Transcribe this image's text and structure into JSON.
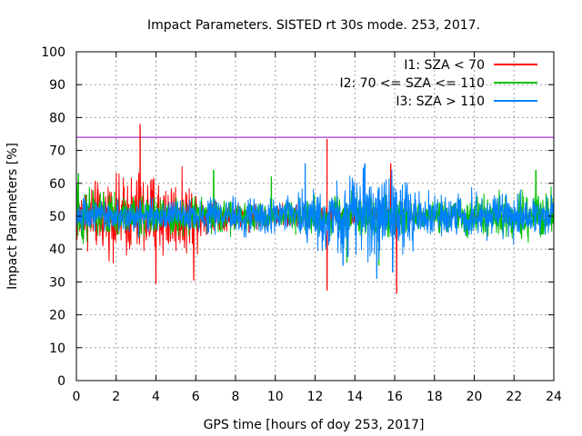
{
  "chart_data": {
    "type": "line",
    "title": "Impact Parameters. SISTED rt 30s mode. 253, 2017.",
    "xlabel": "GPS time [hours of doy 253, 2017]",
    "ylabel": "Impact Parameters [%]",
    "xlim": [
      0,
      24
    ],
    "ylim": [
      0,
      100
    ],
    "xticks": [
      0,
      2,
      4,
      6,
      8,
      10,
      12,
      14,
      16,
      18,
      20,
      22,
      24
    ],
    "yticks": [
      0,
      10,
      20,
      30,
      40,
      50,
      60,
      70,
      80,
      90,
      100
    ],
    "grid": true,
    "legend_position": "top-right",
    "threshold": {
      "value": 74,
      "color": "#9400d3"
    },
    "series": [
      {
        "name": "I1: SZA < 70",
        "color": "#ff0000",
        "center": 50,
        "envelope_x": [
          0,
          1,
          2,
          3,
          4,
          5,
          6,
          6.5,
          24
        ],
        "envelope_half_width": [
          8,
          9,
          10,
          12,
          12,
          10,
          9,
          4,
          0
        ],
        "spikes": [
          {
            "x": 3.2,
            "y": 78
          },
          {
            "x": 4.0,
            "y": 29.5
          },
          {
            "x": 5.9,
            "y": 30.5
          },
          {
            "x": 12.6,
            "y": 73.5
          },
          {
            "x": 12.6,
            "y": 27.5
          },
          {
            "x": 16.1,
            "y": 26.5
          },
          {
            "x": 15.8,
            "y": 66
          }
        ]
      },
      {
        "name": "I2: 70 <= SZA <= 110",
        "color": "#00c000",
        "center": 50,
        "envelope_x": [
          0,
          2,
          4,
          6,
          7,
          10,
          12,
          14,
          16,
          18,
          20,
          22,
          24
        ],
        "envelope_half_width": [
          8,
          6,
          5,
          6,
          5,
          3,
          5,
          6,
          6,
          4,
          5,
          6,
          6
        ],
        "spikes": [
          {
            "x": 0.1,
            "y": 63
          },
          {
            "x": 6.9,
            "y": 64
          },
          {
            "x": 9.8,
            "y": 62
          },
          {
            "x": 13.6,
            "y": 36
          },
          {
            "x": 15.2,
            "y": 35
          },
          {
            "x": 23.1,
            "y": 64
          }
        ]
      },
      {
        "name": "I3: SZA > 110",
        "color": "#0080ff",
        "center": 50,
        "envelope_x": [
          0,
          6,
          7,
          10,
          11,
          12,
          13,
          14,
          15,
          16,
          17,
          18,
          20,
          22,
          24
        ],
        "envelope_half_width": [
          5,
          4,
          5,
          5,
          6,
          8,
          10,
          11,
          12,
          11,
          7,
          6,
          6,
          6,
          5
        ],
        "spikes": [
          {
            "x": 14.5,
            "y": 66
          },
          {
            "x": 15.1,
            "y": 31
          },
          {
            "x": 15.9,
            "y": 33
          },
          {
            "x": 11.5,
            "y": 66
          },
          {
            "x": 13.4,
            "y": 35
          }
        ]
      }
    ]
  }
}
